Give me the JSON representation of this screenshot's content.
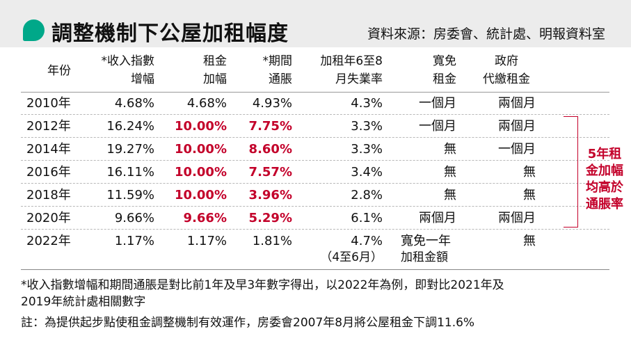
{
  "title": "調整機制下公屋加租幅度",
  "source": "資料來源：房委會、統計處、明報資料室",
  "headers": {
    "year": "年份",
    "income_1": "*收入指數",
    "income_2": "增幅",
    "rent_1": "租金",
    "rent_2": "加幅",
    "infl_1": "*期間",
    "infl_2": "通脹",
    "unemp_1": "加租年6至8",
    "unemp_2": "月失業率",
    "waive_1": "寬免",
    "waive_2": "租金",
    "gov_1": "政府",
    "gov_2": "代繳租金"
  },
  "rows": [
    {
      "year": "2010年",
      "income": "4.68%",
      "rent": "4.68%",
      "inflation": "4.93%",
      "unemployment": "4.3%",
      "waiver": "一個月",
      "gov": "兩個月",
      "highlight": false
    },
    {
      "year": "2012年",
      "income": "16.24%",
      "rent": "10.00%",
      "inflation": "7.75%",
      "unemployment": "3.3%",
      "waiver": "一個月",
      "gov": "兩個月",
      "highlight": true
    },
    {
      "year": "2014年",
      "income": "19.27%",
      "rent": "10.00%",
      "inflation": "8.60%",
      "unemployment": "3.3%",
      "waiver": "無",
      "gov": "一個月",
      "highlight": true
    },
    {
      "year": "2016年",
      "income": "16.11%",
      "rent": "10.00%",
      "inflation": "7.57%",
      "unemployment": "3.4%",
      "waiver": "無",
      "gov": "無",
      "highlight": true
    },
    {
      "year": "2018年",
      "income": "11.59%",
      "rent": "10.00%",
      "inflation": "3.96%",
      "unemployment": "2.8%",
      "waiver": "無",
      "gov": "無",
      "highlight": true
    },
    {
      "year": "2020年",
      "income": "9.66%",
      "rent": "9.66%",
      "inflation": "5.29%",
      "unemployment": "6.1%",
      "waiver": "兩個月",
      "gov": "兩個月",
      "highlight": true
    },
    {
      "year": "2022年",
      "income": "1.17%",
      "rent": "1.17%",
      "inflation": "1.81%",
      "unemployment": "4.7%",
      "unemployment_note": "（4至6月）",
      "waiver": "寬免一年",
      "waiver_2": "加租金額",
      "gov": "無",
      "highlight": false
    }
  ],
  "side_note": "5年租金加幅均高於通脹率",
  "footnote_1": "*收入指數增幅和期間通脹是對比前1年及早3年數字得出，以2022年為例，即對比2021年及",
  "footnote_2": "2019年統計處相關數字",
  "footnote_3": "註：為提供起步點使租金調整機制有效運作，房委會2007年8月將公屋租金下調11.6%",
  "colors": {
    "accent": "#00a889",
    "highlight": "#c3002a",
    "title_bg": "#ececec"
  }
}
